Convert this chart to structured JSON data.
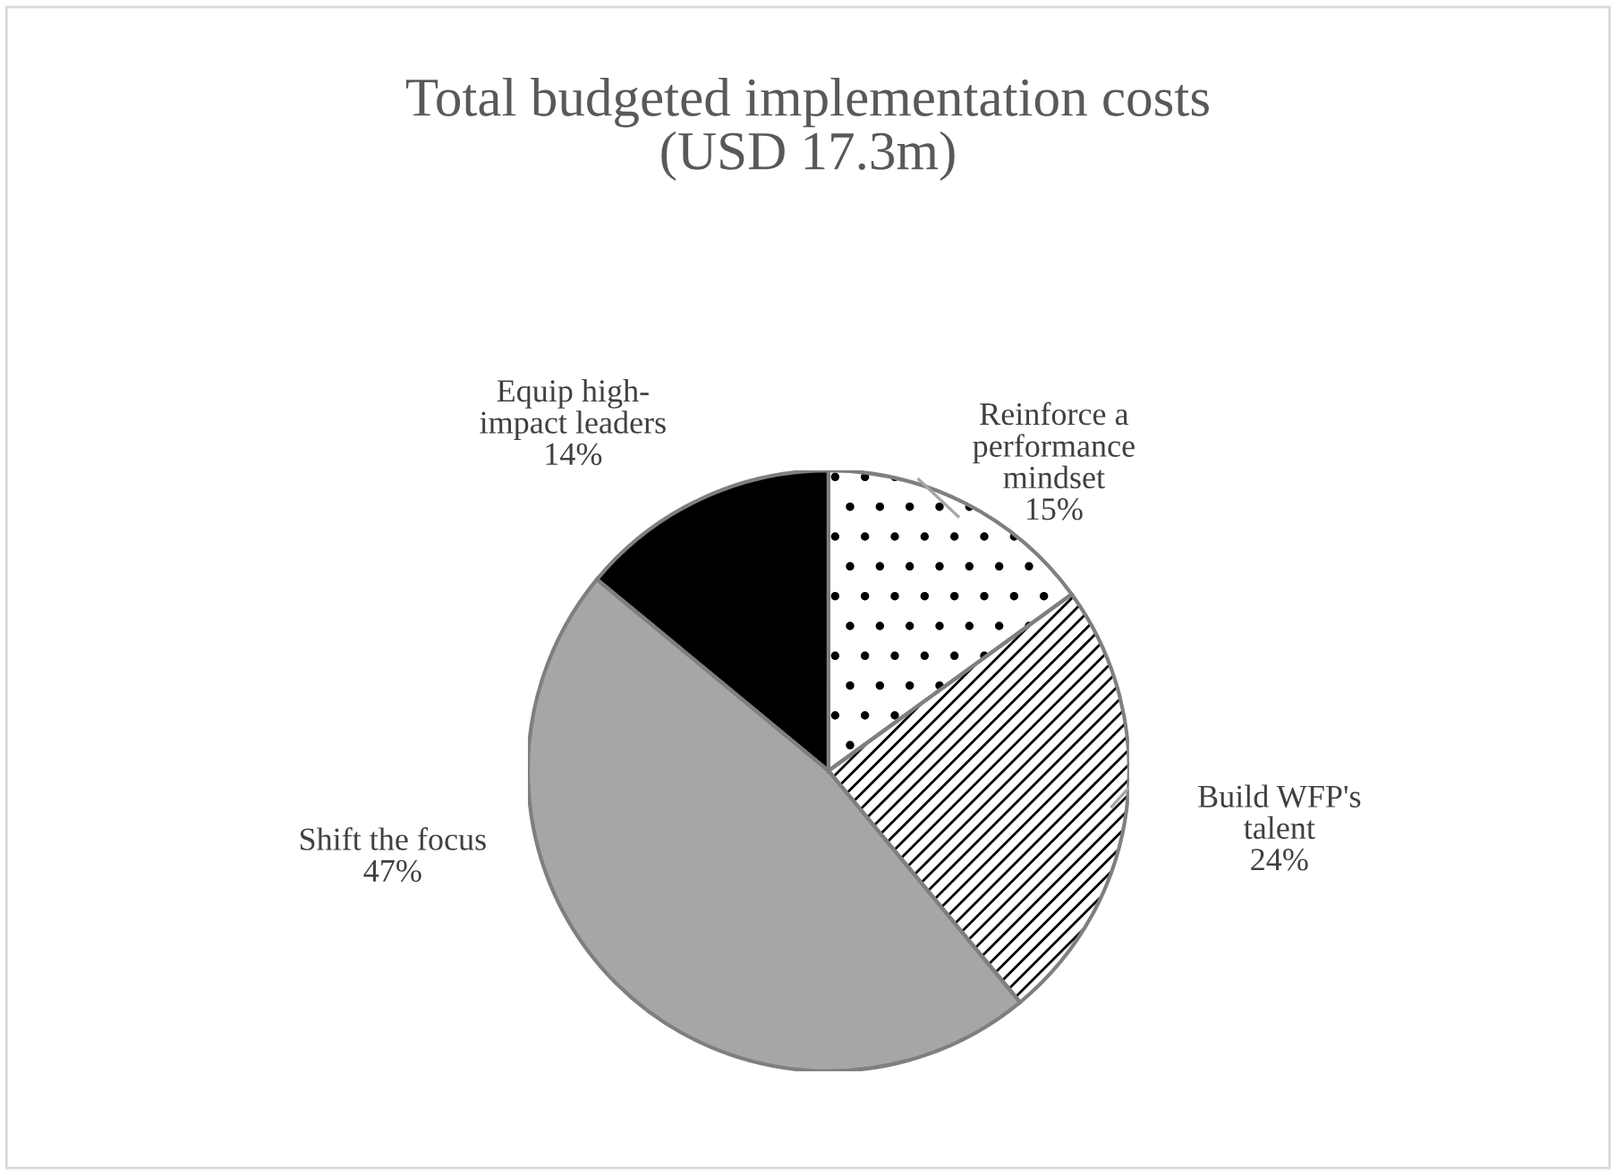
{
  "chart_data": {
    "type": "pie",
    "title": "Total budgeted implementation costs\n(USD 17.3m)",
    "categories": [
      "Reinforce a\nperformance\nmindset",
      "Build WFP's\ntalent",
      "Shift the focus",
      "Equip high-\nimpact leaders"
    ],
    "values": [
      15,
      24,
      47,
      14
    ],
    "value_labels": [
      "15%",
      "24%",
      "47%",
      "14%"
    ],
    "colors": [
      "#ffffff",
      "#ffffff",
      "#a6a6a6",
      "#000000"
    ],
    "legend": false
  }
}
